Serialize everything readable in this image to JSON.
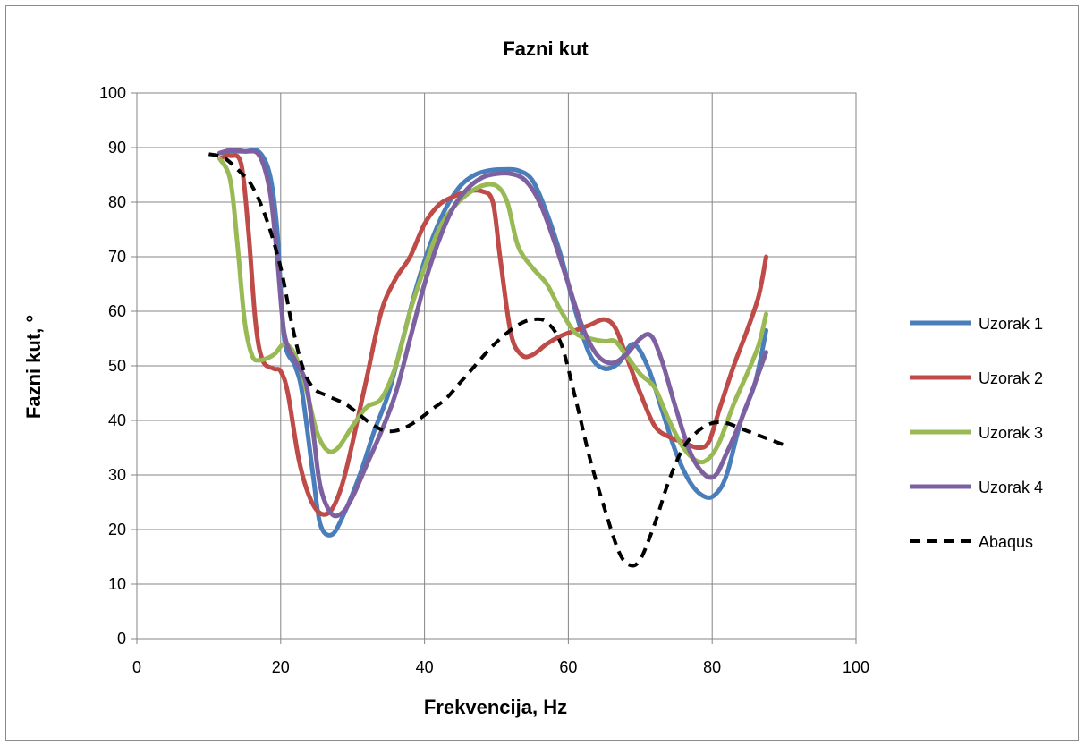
{
  "chart_data": {
    "type": "line",
    "title": "Fazni kut",
    "xlabel": "Frekvencija, Hz",
    "ylabel": "Fazni kut, °",
    "xlim": [
      0,
      100
    ],
    "ylim": [
      0,
      100
    ],
    "x_ticks": [
      "0",
      "20",
      "40",
      "60",
      "80",
      "100"
    ],
    "y_ticks": [
      "0",
      "10",
      "20",
      "30",
      "40",
      "50",
      "60",
      "70",
      "80",
      "90",
      "100"
    ],
    "grid": true,
    "legend_position": "right",
    "series": [
      {
        "name": "Uzorak 1",
        "color": "#4a7ebb",
        "dash": "solid",
        "points": [
          [
            11.5,
            89
          ],
          [
            13,
            89.3
          ],
          [
            15,
            89.3
          ],
          [
            17,
            89.2
          ],
          [
            18.5,
            85
          ],
          [
            19.5,
            75
          ],
          [
            20.5,
            55
          ],
          [
            22,
            50
          ],
          [
            23,
            45
          ],
          [
            24.5,
            30
          ],
          [
            25.5,
            21
          ],
          [
            27,
            19
          ],
          [
            28.5,
            22
          ],
          [
            31,
            30
          ],
          [
            33,
            38
          ],
          [
            35,
            45
          ],
          [
            37,
            55
          ],
          [
            39,
            65
          ],
          [
            41,
            73
          ],
          [
            43,
            79
          ],
          [
            45,
            83
          ],
          [
            47,
            85
          ],
          [
            49,
            85.8
          ],
          [
            51,
            86
          ],
          [
            53,
            85.8
          ],
          [
            55,
            84
          ],
          [
            57,
            78
          ],
          [
            59,
            70
          ],
          [
            61,
            60
          ],
          [
            63,
            52
          ],
          [
            65,
            49.5
          ],
          [
            67,
            50.5
          ],
          [
            69,
            54
          ],
          [
            71,
            50
          ],
          [
            73,
            42
          ],
          [
            75,
            34
          ],
          [
            77,
            28.5
          ],
          [
            79,
            26
          ],
          [
            80.5,
            26.5
          ],
          [
            82,
            30
          ],
          [
            84,
            40
          ],
          [
            86,
            47
          ],
          [
            87.5,
            56.5
          ]
        ]
      },
      {
        "name": "Uzorak 2",
        "color": "#be4b48",
        "dash": "solid",
        "points": [
          [
            11.5,
            88
          ],
          [
            13,
            88.5
          ],
          [
            14.5,
            87
          ],
          [
            15.5,
            75
          ],
          [
            16.5,
            58
          ],
          [
            17.5,
            51
          ],
          [
            19,
            49.5
          ],
          [
            20,
            49
          ],
          [
            21,
            45
          ],
          [
            22.5,
            33
          ],
          [
            24,
            26
          ],
          [
            25.5,
            23
          ],
          [
            27,
            23.5
          ],
          [
            28.5,
            28
          ],
          [
            30,
            36
          ],
          [
            32,
            48
          ],
          [
            34,
            60
          ],
          [
            36,
            66
          ],
          [
            38,
            70
          ],
          [
            40,
            76
          ],
          [
            42,
            79.5
          ],
          [
            44,
            81
          ],
          [
            46,
            82
          ],
          [
            48,
            82
          ],
          [
            49.5,
            80
          ],
          [
            50.5,
            70
          ],
          [
            52,
            56
          ],
          [
            53.5,
            52
          ],
          [
            55,
            52
          ],
          [
            57,
            54
          ],
          [
            59,
            55.5
          ],
          [
            61,
            56.5
          ],
          [
            63,
            57.5
          ],
          [
            65,
            58.5
          ],
          [
            66.5,
            57
          ],
          [
            68,
            52
          ],
          [
            70,
            45
          ],
          [
            72,
            39
          ],
          [
            74,
            37
          ],
          [
            76,
            36
          ],
          [
            78,
            35
          ],
          [
            79.5,
            36
          ],
          [
            81,
            42
          ],
          [
            83,
            50
          ],
          [
            85,
            57
          ],
          [
            86.5,
            63
          ],
          [
            87.5,
            70
          ]
        ]
      },
      {
        "name": "Uzorak 3",
        "color": "#98b954",
        "dash": "solid",
        "points": [
          [
            11.5,
            88
          ],
          [
            13,
            84
          ],
          [
            14,
            72
          ],
          [
            15,
            58
          ],
          [
            16,
            52
          ],
          [
            17,
            51
          ],
          [
            19,
            52
          ],
          [
            20.5,
            54
          ],
          [
            22,
            52
          ],
          [
            23.5,
            46
          ],
          [
            25,
            38
          ],
          [
            26.5,
            34.5
          ],
          [
            28,
            35
          ],
          [
            30,
            39
          ],
          [
            32,
            42.5
          ],
          [
            34,
            44
          ],
          [
            36,
            50
          ],
          [
            38,
            60
          ],
          [
            40,
            68
          ],
          [
            42,
            75
          ],
          [
            44,
            79
          ],
          [
            46,
            81.5
          ],
          [
            48,
            83
          ],
          [
            50,
            83
          ],
          [
            51.5,
            80
          ],
          [
            53,
            72
          ],
          [
            55,
            68
          ],
          [
            57,
            65
          ],
          [
            59,
            60
          ],
          [
            61,
            56
          ],
          [
            63,
            55
          ],
          [
            65,
            54.5
          ],
          [
            66.5,
            54.5
          ],
          [
            68,
            52
          ],
          [
            70,
            48.5
          ],
          [
            72,
            46
          ],
          [
            74,
            40
          ],
          [
            76,
            35
          ],
          [
            78,
            32.5
          ],
          [
            79.5,
            33
          ],
          [
            81,
            36
          ],
          [
            83,
            43
          ],
          [
            85,
            49
          ],
          [
            86.5,
            54
          ],
          [
            87.5,
            59.5
          ]
        ]
      },
      {
        "name": "Uzorak 4",
        "color": "#7d60a0",
        "dash": "solid",
        "points": [
          [
            11.5,
            89
          ],
          [
            13,
            89.5
          ],
          [
            15,
            89.3
          ],
          [
            17,
            88.6
          ],
          [
            18.5,
            82
          ],
          [
            19.5,
            70
          ],
          [
            20.5,
            56
          ],
          [
            22,
            51
          ],
          [
            23.5,
            47
          ],
          [
            24.5,
            38
          ],
          [
            25.5,
            28
          ],
          [
            27,
            23
          ],
          [
            28.5,
            23
          ],
          [
            30,
            26
          ],
          [
            32,
            32
          ],
          [
            34,
            38
          ],
          [
            36,
            45
          ],
          [
            38,
            55
          ],
          [
            40,
            65
          ],
          [
            42,
            73
          ],
          [
            44,
            79
          ],
          [
            46,
            82.5
          ],
          [
            48,
            84.5
          ],
          [
            50,
            85.2
          ],
          [
            52,
            85.2
          ],
          [
            54,
            84
          ],
          [
            56,
            80
          ],
          [
            58,
            73
          ],
          [
            60,
            65
          ],
          [
            62,
            57
          ],
          [
            64,
            52
          ],
          [
            66,
            50.5
          ],
          [
            68,
            52
          ],
          [
            70,
            55
          ],
          [
            71.5,
            55.5
          ],
          [
            73,
            51
          ],
          [
            75,
            42
          ],
          [
            77,
            34
          ],
          [
            79,
            30
          ],
          [
            80.5,
            30
          ],
          [
            82,
            34
          ],
          [
            84,
            40
          ],
          [
            86,
            47
          ],
          [
            87.5,
            52.5
          ]
        ]
      },
      {
        "name": "Abaqus",
        "color": "#000000",
        "dash": "dashed",
        "points": [
          [
            10,
            88.8
          ],
          [
            12,
            88.2
          ],
          [
            14,
            86
          ],
          [
            16,
            83
          ],
          [
            18,
            77
          ],
          [
            20,
            68
          ],
          [
            21.5,
            58
          ],
          [
            23,
            50
          ],
          [
            24.5,
            46
          ],
          [
            26.5,
            44.5
          ],
          [
            29,
            43
          ],
          [
            31,
            41
          ],
          [
            33,
            39
          ],
          [
            35,
            38
          ],
          [
            37,
            38.5
          ],
          [
            39,
            40
          ],
          [
            41,
            42
          ],
          [
            43,
            44
          ],
          [
            45,
            47
          ],
          [
            47,
            50
          ],
          [
            49,
            53
          ],
          [
            51,
            55.5
          ],
          [
            53,
            57.5
          ],
          [
            55,
            58.5
          ],
          [
            57,
            58
          ],
          [
            59,
            54
          ],
          [
            61,
            44
          ],
          [
            63,
            33
          ],
          [
            65,
            24
          ],
          [
            67,
            16
          ],
          [
            68.5,
            13.5
          ],
          [
            70,
            14.5
          ],
          [
            72,
            21
          ],
          [
            74,
            29
          ],
          [
            76,
            35
          ],
          [
            78,
            38
          ],
          [
            80,
            39.5
          ],
          [
            82,
            39.5
          ],
          [
            84,
            38.5
          ],
          [
            86,
            37.5
          ],
          [
            88,
            36.5
          ],
          [
            90,
            35.5
          ]
        ]
      }
    ]
  }
}
